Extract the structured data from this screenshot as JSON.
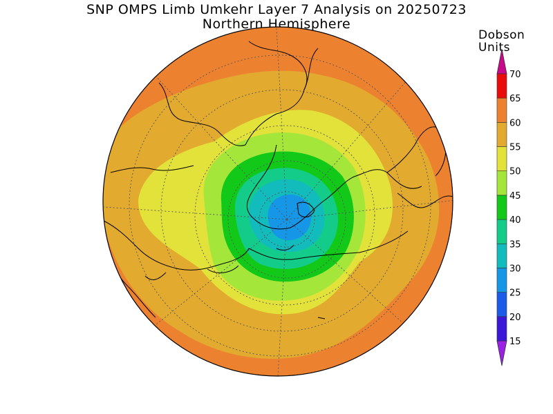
{
  "title": "SNP OMPS Limb Umkehr Layer 7 Analysis on 20250723",
  "subtitle": "Northern Hemisphere",
  "colorbar": {
    "units_line1": "Dobson",
    "units_line2": "Units",
    "levels": [
      15,
      20,
      25,
      30,
      35,
      40,
      45,
      50,
      55,
      60,
      65,
      70
    ],
    "colors": [
      "#7a10d8",
      "#3b18d8",
      "#1e5ae8",
      "#1596e6",
      "#12bcbc",
      "#14cc8a",
      "#12c818",
      "#a4e63a",
      "#e2e23a",
      "#e2aa2e",
      "#ec8230",
      "#e80c0c",
      "#c80a8a"
    ],
    "bottom_arrow_color": "#9a20e6",
    "top_arrow_color": "#c80a8a"
  },
  "map": {
    "projection": "north-polar-stereographic",
    "background_color": "#ec8230"
  }
}
